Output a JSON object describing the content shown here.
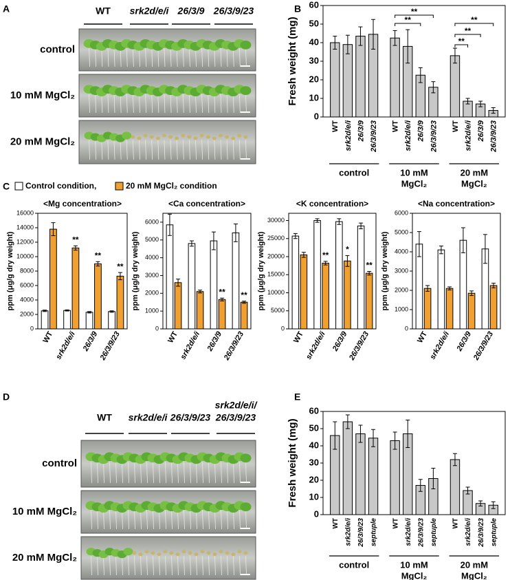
{
  "panel_labels": [
    "A",
    "B",
    "C",
    "D",
    "E"
  ],
  "photo_panels": [
    {
      "genotypes": [
        [
          "WT"
        ],
        [
          "srk2d/e/i"
        ],
        [
          "26/3/9"
        ],
        [
          "26/3/9/23"
        ]
      ],
      "conditions": [
        "control",
        "10 mM MgCl₂",
        "20 mM MgCl₂"
      ]
    },
    {
      "genotypes": [
        [
          "WT"
        ],
        [
          "srk2d/e/i"
        ],
        [
          "26/3/9/23"
        ],
        [
          "srk2d/e/i/",
          "26/3/9/23"
        ]
      ],
      "conditions": [
        "control",
        "10 mM MgCl₂",
        "20 mM MgCl₂"
      ]
    }
  ],
  "chart_data": [
    {
      "type": "bar",
      "ylabel": "Fresh weight (mg)",
      "ylim": [
        0,
        60
      ],
      "yticks": [
        0,
        10,
        20,
        30,
        40,
        50,
        60
      ],
      "color": "#c8c8c8",
      "groups": [
        {
          "label": [
            "control"
          ],
          "categories": [
            "WT",
            "srk2d/e/i",
            "26/3/9",
            "26/3/9/23"
          ],
          "values": [
            40,
            39,
            43.5,
            44.5
          ],
          "errors": [
            3.5,
            5,
            5,
            8
          ]
        },
        {
          "label": [
            "10 mM",
            "MgCl₂"
          ],
          "categories": [
            "WT",
            "srk2d/e/i",
            "26/3/9",
            "26/3/9/23"
          ],
          "values": [
            42.5,
            38,
            22.5,
            16
          ],
          "errors": [
            4,
            9,
            4,
            3
          ]
        },
        {
          "label": [
            "20 mM",
            "MgCl₂"
          ],
          "categories": [
            "WT",
            "srk2d/e/i",
            "26/3/9",
            "26/3/9/23"
          ],
          "values": [
            33,
            8.5,
            7,
            3.5
          ],
          "errors": [
            4,
            1.5,
            1.5,
            1.5
          ]
        }
      ],
      "annotations": [
        "**",
        "**",
        "**",
        "**",
        "**"
      ]
    },
    {
      "type": "bar",
      "title": "<Mg concentration>",
      "ylabel": "ppm (μg/g dry weight)",
      "ylim": [
        0,
        16000
      ],
      "yticks": [
        0,
        2000,
        4000,
        6000,
        8000,
        10000,
        12000,
        14000,
        16000
      ],
      "categories": [
        "WT",
        "srk2d/e/i",
        "26/3/9",
        "26/3/9/23"
      ],
      "series": [
        {
          "name": "Control condition,",
          "color": "#ffffff",
          "values": [
            2500,
            2550,
            2300,
            2400
          ],
          "errors": [
            100,
            80,
            100,
            100
          ]
        },
        {
          "name": "20 mM MgCl₂ condition",
          "color": "#f0a030",
          "values": [
            13800,
            11200,
            9000,
            7300
          ],
          "errors": [
            900,
            300,
            300,
            500
          ],
          "annotations": [
            null,
            "**",
            "**",
            "**"
          ]
        }
      ]
    },
    {
      "type": "bar",
      "title": "<Ca concentration>",
      "ylabel": "ppm (μg/g dry weight)",
      "ylim": [
        0,
        6500
      ],
      "yticks": [
        0,
        1000,
        2000,
        3000,
        4000,
        5000,
        6000
      ],
      "categories": [
        "WT",
        "srk2d/e/i",
        "26/3/9",
        "26/3/9/23"
      ],
      "series": [
        {
          "color": "#ffffff",
          "values": [
            5850,
            4800,
            4950,
            5400
          ],
          "errors": [
            600,
            150,
            500,
            500
          ]
        },
        {
          "color": "#f0a030",
          "values": [
            2600,
            2100,
            1650,
            1500
          ],
          "errors": [
            200,
            80,
            80,
            60
          ],
          "annotations": [
            null,
            null,
            "**",
            "**"
          ]
        }
      ]
    },
    {
      "type": "bar",
      "title": "<K concentration>",
      "ylabel": "ppm (μg/g dry weight)",
      "ylim": [
        0,
        32000
      ],
      "yticks": [
        0,
        5000,
        10000,
        15000,
        20000,
        25000,
        30000
      ],
      "categories": [
        "WT",
        "srk2d/e/i",
        "26/3/9",
        "26/3/9/23"
      ],
      "series": [
        {
          "color": "#ffffff",
          "values": [
            25700,
            30000,
            29700,
            28500
          ],
          "errors": [
            700,
            500,
            800,
            800
          ]
        },
        {
          "color": "#f0a030",
          "values": [
            20500,
            18200,
            18800,
            15400
          ],
          "errors": [
            700,
            500,
            1500,
            500
          ],
          "annotations": [
            null,
            "**",
            "*",
            "**"
          ]
        }
      ]
    },
    {
      "type": "bar",
      "title": "<Na concentration>",
      "ylabel": "ppm (μg/g dry weight)",
      "ylim": [
        0,
        6000
      ],
      "yticks": [
        0,
        1000,
        2000,
        3000,
        4000,
        5000,
        6000
      ],
      "categories": [
        "WT",
        "srk2d/e/i",
        "26/3/9",
        "26/3/9/23"
      ],
      "series": [
        {
          "color": "#ffffff",
          "values": [
            4400,
            4100,
            4600,
            4150
          ],
          "errors": [
            650,
            200,
            650,
            750
          ]
        },
        {
          "color": "#f0a030",
          "values": [
            2100,
            2100,
            1850,
            2250
          ],
          "errors": [
            150,
            80,
            120,
            120
          ]
        }
      ]
    },
    {
      "type": "bar",
      "ylabel": "Fresh weight (mg)",
      "ylim": [
        0,
        60
      ],
      "yticks": [
        0,
        10,
        20,
        30,
        40,
        50,
        60
      ],
      "color": "#c8c8c8",
      "groups": [
        {
          "label": [
            "control"
          ],
          "categories": [
            "WT",
            "srk2d/e/i",
            "26/3/9/23",
            "septuple"
          ],
          "values": [
            46,
            54,
            47,
            44.5
          ],
          "errors": [
            8,
            4,
            5,
            5
          ]
        },
        {
          "label": [
            "10 mM",
            "MgCl₂"
          ],
          "categories": [
            "WT",
            "srk2d/e/i",
            "26/3/9/23",
            "septuple"
          ],
          "values": [
            43,
            47,
            17,
            21
          ],
          "errors": [
            5,
            8,
            3.5,
            6
          ]
        },
        {
          "label": [
            "20 mM",
            "MgCl₂"
          ],
          "categories": [
            "WT",
            "srk2d/e/i",
            "26/3/9/23",
            "septuple"
          ],
          "values": [
            32,
            14,
            6.5,
            5.5
          ],
          "errors": [
            3.5,
            2,
            1.5,
            2
          ]
        }
      ]
    }
  ]
}
